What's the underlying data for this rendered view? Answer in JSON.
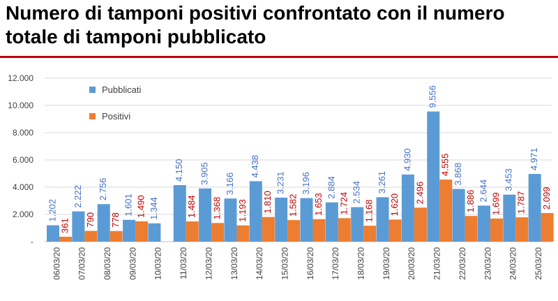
{
  "title": "Numero di tamponi positivi confrontato con il numero totale di tamponi pubblicato",
  "chart_data": {
    "type": "bar",
    "categories": [
      "06/03/20",
      "07/03/20",
      "08/03/20",
      "09/03/20",
      "10/03/20",
      "11/03/20",
      "12/03/20",
      "13/03/20",
      "14/03/20",
      "15/03/20",
      "16/03/20",
      "17/03/20",
      "18/03/20",
      "19/03/20",
      "20/03/20",
      "21/03/20",
      "22/03/20",
      "23/03/20",
      "24/03/20",
      "25/03/20"
    ],
    "series": [
      {
        "name": "Pubblicati",
        "color": "#5b9bd5",
        "values": [
          1202,
          2222,
          2756,
          1601,
          1344,
          4150,
          3905,
          3166,
          4438,
          3231,
          3196,
          2884,
          2534,
          3261,
          4930,
          9556,
          3868,
          2644,
          3453,
          4971
        ],
        "labels": [
          "1.202",
          "2.222",
          "2.756",
          "1.601",
          "1.344",
          "4.150",
          "3.905",
          "3.166",
          "4.438",
          "3.231",
          "3.196",
          "2.884",
          "2.534",
          "3.261",
          "4.930",
          "9.556",
          "3.868",
          "2.644",
          "3.453",
          "4.971"
        ]
      },
      {
        "name": "Positivi",
        "color": "#ed7d31",
        "values": [
          361,
          790,
          778,
          1490,
          0,
          1484,
          1368,
          1193,
          1810,
          1582,
          1653,
          1724,
          1168,
          1620,
          2496,
          4555,
          1886,
          1699,
          1787,
          2099
        ],
        "labels": [
          "361",
          "790",
          "778",
          "1.490",
          "",
          "1.484",
          "1.368",
          "1.193",
          "1.810",
          "1.582",
          "1.653",
          "1.724",
          "1.168",
          "1.620",
          "2.496",
          "4.555",
          "1.886",
          "1.699",
          "1.787",
          "2.099"
        ]
      }
    ],
    "y_ticks": [
      0,
      2000,
      4000,
      6000,
      8000,
      10000,
      12000
    ],
    "y_tick_labels": [
      "-",
      "2.000",
      "4.000",
      "6.000",
      "8.000",
      "10.000",
      "12.000"
    ],
    "ylim": [
      0,
      12000
    ],
    "grid": true,
    "legend_position": "top-left",
    "label_colors": {
      "Pubblicati": "#4472c4",
      "Positivi": "#c00000"
    }
  }
}
